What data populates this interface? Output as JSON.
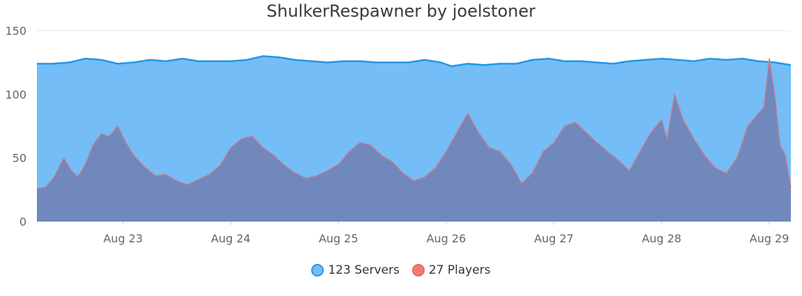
{
  "chart_data": {
    "type": "area",
    "title": "ShulkerRespawner by joelstoner",
    "xlabel": "",
    "ylabel": "",
    "ylim": [
      0,
      150
    ],
    "y_ticks": [
      "0",
      "50",
      "100",
      "150"
    ],
    "x_tick_labels": [
      "Aug 23",
      "Aug 24",
      "Aug 25",
      "Aug 26",
      "Aug 27",
      "Aug 28",
      "Aug 29"
    ],
    "x_range_days": [
      22.2,
      29.2
    ],
    "grid": true,
    "legend_position": "bottom",
    "series": [
      {
        "name": "123 Servers",
        "fill": "#74bdf7",
        "stroke": "#2196e8",
        "points": [
          [
            22.2,
            124
          ],
          [
            22.35,
            124
          ],
          [
            22.5,
            125
          ],
          [
            22.65,
            128
          ],
          [
            22.8,
            127
          ],
          [
            22.95,
            124
          ],
          [
            23.1,
            125
          ],
          [
            23.25,
            127
          ],
          [
            23.4,
            126
          ],
          [
            23.55,
            128
          ],
          [
            23.7,
            126
          ],
          [
            23.85,
            126
          ],
          [
            24.0,
            126
          ],
          [
            24.15,
            127
          ],
          [
            24.3,
            130
          ],
          [
            24.45,
            129
          ],
          [
            24.6,
            127
          ],
          [
            24.75,
            126
          ],
          [
            24.9,
            125
          ],
          [
            25.05,
            126
          ],
          [
            25.2,
            126
          ],
          [
            25.35,
            125
          ],
          [
            25.5,
            125
          ],
          [
            25.65,
            125
          ],
          [
            25.8,
            127
          ],
          [
            25.95,
            125
          ],
          [
            26.05,
            122
          ],
          [
            26.2,
            124
          ],
          [
            26.35,
            123
          ],
          [
            26.5,
            124
          ],
          [
            26.65,
            124
          ],
          [
            26.8,
            127
          ],
          [
            26.95,
            128
          ],
          [
            27.1,
            126
          ],
          [
            27.25,
            126
          ],
          [
            27.4,
            125
          ],
          [
            27.55,
            124
          ],
          [
            27.7,
            126
          ],
          [
            27.85,
            127
          ],
          [
            28.0,
            128
          ],
          [
            28.15,
            127
          ],
          [
            28.3,
            126
          ],
          [
            28.45,
            128
          ],
          [
            28.6,
            127
          ],
          [
            28.75,
            128
          ],
          [
            28.9,
            126
          ],
          [
            29.05,
            125
          ],
          [
            29.2,
            123
          ]
        ]
      },
      {
        "name": "27 Players",
        "fill": "#7088bb",
        "stroke": "#c77e97",
        "points": [
          [
            22.2,
            26
          ],
          [
            22.28,
            27
          ],
          [
            22.36,
            35
          ],
          [
            22.45,
            50
          ],
          [
            22.52,
            40
          ],
          [
            22.58,
            35
          ],
          [
            22.65,
            45
          ],
          [
            22.72,
            60
          ],
          [
            22.8,
            69
          ],
          [
            22.87,
            67
          ],
          [
            22.95,
            75
          ],
          [
            23.02,
            63
          ],
          [
            23.1,
            52
          ],
          [
            23.2,
            43
          ],
          [
            23.3,
            36
          ],
          [
            23.4,
            37
          ],
          [
            23.5,
            32
          ],
          [
            23.6,
            29
          ],
          [
            23.7,
            33
          ],
          [
            23.8,
            37
          ],
          [
            23.9,
            44
          ],
          [
            24.0,
            58
          ],
          [
            24.1,
            65
          ],
          [
            24.2,
            67
          ],
          [
            24.3,
            58
          ],
          [
            24.4,
            52
          ],
          [
            24.5,
            44
          ],
          [
            24.6,
            38
          ],
          [
            24.7,
            34
          ],
          [
            24.8,
            36
          ],
          [
            24.9,
            40
          ],
          [
            25.0,
            45
          ],
          [
            25.1,
            55
          ],
          [
            25.2,
            62
          ],
          [
            25.3,
            60
          ],
          [
            25.4,
            52
          ],
          [
            25.5,
            47
          ],
          [
            25.6,
            38
          ],
          [
            25.7,
            32
          ],
          [
            25.8,
            35
          ],
          [
            25.9,
            42
          ],
          [
            26.0,
            55
          ],
          [
            26.1,
            70
          ],
          [
            26.2,
            85
          ],
          [
            26.3,
            70
          ],
          [
            26.4,
            58
          ],
          [
            26.5,
            55
          ],
          [
            26.6,
            45
          ],
          [
            26.7,
            30
          ],
          [
            26.8,
            38
          ],
          [
            26.9,
            55
          ],
          [
            27.0,
            62
          ],
          [
            27.1,
            75
          ],
          [
            27.2,
            78
          ],
          [
            27.3,
            70
          ],
          [
            27.4,
            62
          ],
          [
            27.5,
            55
          ],
          [
            27.6,
            48
          ],
          [
            27.7,
            40
          ],
          [
            27.8,
            55
          ],
          [
            27.9,
            70
          ],
          [
            28.0,
            80
          ],
          [
            28.05,
            65
          ],
          [
            28.12,
            100
          ],
          [
            28.2,
            80
          ],
          [
            28.3,
            65
          ],
          [
            28.4,
            52
          ],
          [
            28.5,
            42
          ],
          [
            28.6,
            38
          ],
          [
            28.7,
            50
          ],
          [
            28.8,
            75
          ],
          [
            28.9,
            85
          ],
          [
            28.95,
            90
          ],
          [
            29.0,
            128
          ],
          [
            29.05,
            100
          ],
          [
            29.1,
            60
          ],
          [
            29.15,
            52
          ],
          [
            29.2,
            27
          ]
        ]
      }
    ]
  }
}
